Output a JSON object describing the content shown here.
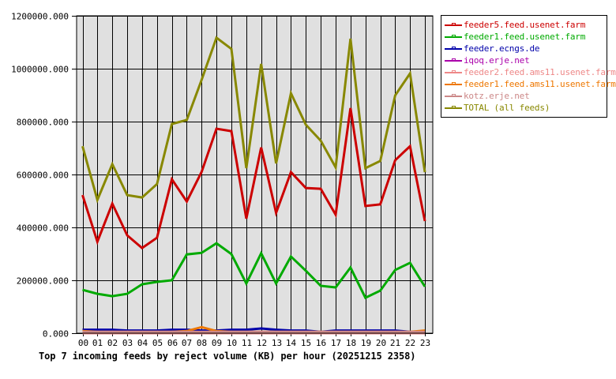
{
  "chart_data": {
    "type": "line",
    "title": "Top 7 incoming feeds by reject volume (KB) per hour (20251215 2358)",
    "xlabel": "",
    "ylabel": "",
    "x": [
      "00",
      "01",
      "02",
      "03",
      "04",
      "05",
      "06",
      "07",
      "08",
      "09",
      "10",
      "11",
      "12",
      "13",
      "14",
      "15",
      "16",
      "17",
      "18",
      "19",
      "20",
      "21",
      "22",
      "23"
    ],
    "ylim": [
      0,
      1200000
    ],
    "yticks": [
      "0.000",
      "200000.000",
      "400000.000",
      "600000.000",
      "800000.000",
      "1000000.000",
      "1200000.000"
    ],
    "ytick_values": [
      0,
      200000,
      400000,
      600000,
      800000,
      1000000,
      1200000
    ],
    "grid": true,
    "legend_position": "right",
    "background": "#e0e0e0",
    "series": [
      {
        "name": "feeder5.feed.usenet.farm",
        "color": "#cc0000",
        "values": [
          522000,
          346000,
          490000,
          370000,
          322000,
          361000,
          582000,
          498000,
          610000,
          773000,
          764000,
          433000,
          702000,
          455000,
          609000,
          549000,
          546000,
          448000,
          851000,
          481000,
          487000,
          654000,
          707000,
          424000
        ]
      },
      {
        "name": "feeder1.feed.usenet.farm",
        "color": "#00aa00",
        "values": [
          164000,
          149000,
          140000,
          149000,
          185000,
          194000,
          200000,
          298000,
          304000,
          340000,
          299000,
          188000,
          302000,
          188000,
          290000,
          236000,
          179000,
          173000,
          248000,
          134000,
          161000,
          239000,
          266000,
          176000
        ]
      },
      {
        "name": "feeder.ecngs.de",
        "color": "#0000aa",
        "values": [
          13000,
          13000,
          13000,
          10000,
          10000,
          10000,
          13000,
          13000,
          10000,
          10000,
          13000,
          13000,
          18000,
          13000,
          10000,
          10000,
          5000,
          10000,
          10000,
          10000,
          10000,
          10000,
          5000,
          5000
        ]
      },
      {
        "name": "iqoq.erje.net",
        "color": "#aa00aa",
        "values": [
          0,
          0,
          0,
          0,
          0,
          0,
          0,
          0,
          0,
          0,
          0,
          0,
          0,
          0,
          0,
          0,
          0,
          0,
          0,
          0,
          0,
          0,
          0,
          0
        ]
      },
      {
        "name": "feeder2.feed.ams11.usenet.farm",
        "color": "#ee8888",
        "values": [
          0,
          0,
          0,
          0,
          0,
          0,
          0,
          0,
          0,
          0,
          0,
          0,
          0,
          0,
          0,
          0,
          0,
          0,
          0,
          0,
          0,
          0,
          0,
          0
        ]
      },
      {
        "name": "feeder1.feed.ams11.usenet.farm",
        "color": "#ee7700",
        "values": [
          8000,
          5000,
          5000,
          5000,
          5000,
          5000,
          5000,
          8000,
          23000,
          8000,
          5000,
          5000,
          5000,
          5000,
          5000,
          5000,
          5000,
          5000,
          5000,
          5000,
          5000,
          5000,
          5000,
          10000
        ]
      },
      {
        "name": "kotz.erje.net",
        "color": "#cc8888",
        "values": [
          5000,
          5000,
          5000,
          5000,
          5000,
          5000,
          5000,
          5000,
          5000,
          5000,
          5000,
          5000,
          5000,
          5000,
          5000,
          5000,
          5000,
          5000,
          5000,
          5000,
          5000,
          5000,
          5000,
          5000
        ]
      },
      {
        "name": "TOTAL (all feeds)",
        "color": "#888800",
        "values": [
          707000,
          504000,
          639000,
          522000,
          513000,
          564000,
          791000,
          806000,
          958000,
          1117000,
          1075000,
          624000,
          1018000,
          642000,
          907000,
          788000,
          728000,
          627000,
          1113000,
          624000,
          651000,
          899000,
          982000,
          609000
        ]
      }
    ]
  },
  "legend": {
    "items": [
      {
        "label": "feeder5.feed.usenet.farm",
        "color": "#cc0000"
      },
      {
        "label": "feeder1.feed.usenet.farm",
        "color": "#00aa00"
      },
      {
        "label": "feeder.ecngs.de",
        "color": "#0000aa"
      },
      {
        "label": "iqoq.erje.net",
        "color": "#aa00aa"
      },
      {
        "label": "feeder2.feed.ams11.usenet.farm",
        "color": "#ee8888"
      },
      {
        "label": "feeder1.feed.ams11.usenet.farm",
        "color": "#ee7700"
      },
      {
        "label": "kotz.erje.net",
        "color": "#cc8888"
      },
      {
        "label": "TOTAL (all feeds)",
        "color": "#888800"
      }
    ]
  },
  "footer": {
    "title": "Top 7 incoming feeds by reject volume (KB) per hour (20251215 2358)"
  }
}
